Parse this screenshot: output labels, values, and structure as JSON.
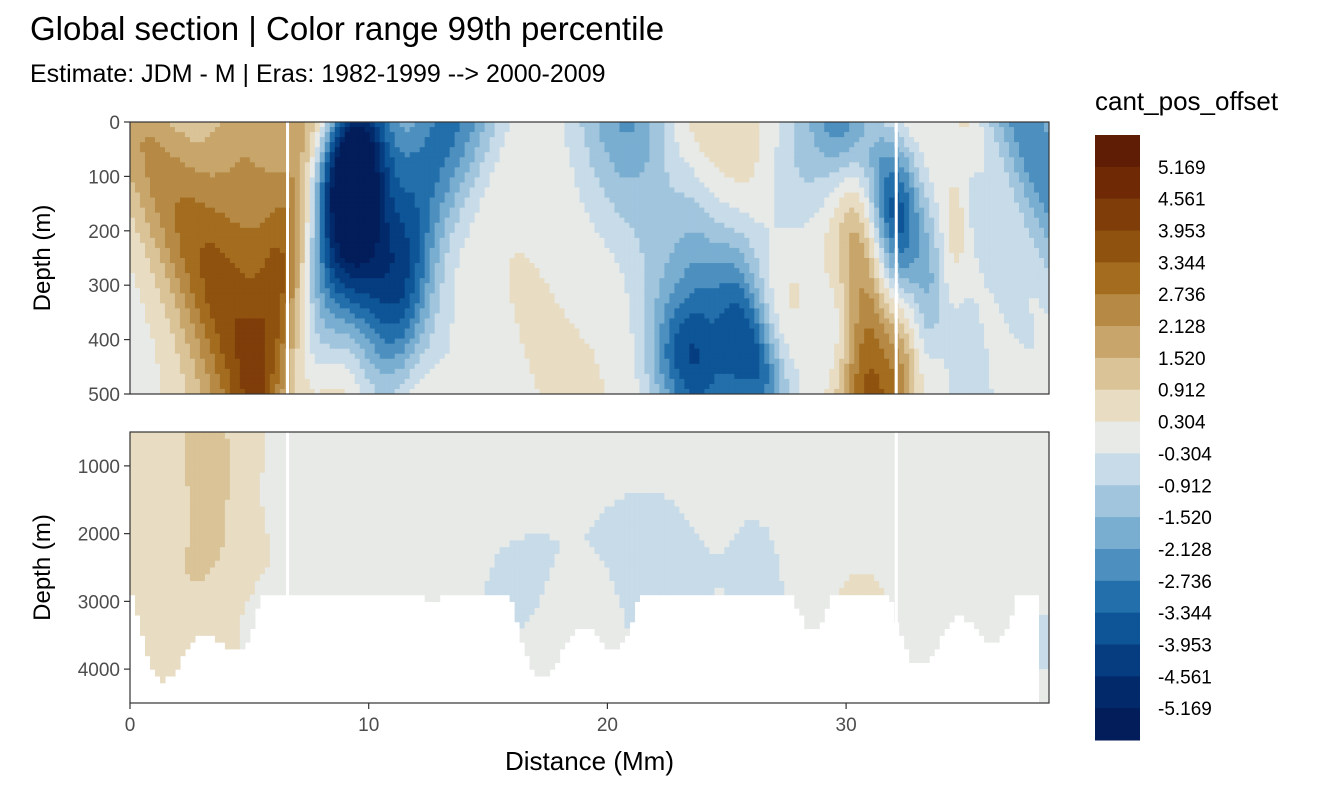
{
  "title": "Global section | Color range 99th percentile",
  "subtitle": "Estimate: JDM - M | Eras: 1982-1999 --> 2000-2009",
  "chart_data": {
    "type": "heatmap",
    "xlabel": "Distance (Mm)",
    "ylabel": "Depth (m)",
    "xlim": [
      0,
      38.5
    ],
    "x_ticks": [
      "0",
      "10",
      "20",
      "30"
    ],
    "panels": [
      {
        "name": "upper",
        "ylim": [
          0,
          500
        ],
        "y_ticks": [
          "0",
          "100",
          "200",
          "300",
          "400",
          "500"
        ]
      },
      {
        "name": "lower",
        "ylim": [
          500,
          4500
        ],
        "y_ticks": [
          "1000",
          "2000",
          "3000",
          "4000"
        ]
      }
    ],
    "legend": {
      "title": "cant_pos_offset",
      "position": "right",
      "labels": [
        "5.169",
        "4.561",
        "3.953",
        "3.344",
        "2.736",
        "2.128",
        "1.520",
        "0.912",
        "0.304",
        "-0.304",
        "-0.912",
        "-1.520",
        "-2.128",
        "-2.736",
        "-3.344",
        "-3.953",
        "-4.561",
        "-5.169"
      ],
      "colors": [
        "#5e1d04",
        "#6f2a05",
        "#7f3d0a",
        "#8f520f",
        "#a36c1e",
        "#b68a45",
        "#c8a66b",
        "#d9c397",
        "#e8dcc3",
        "#e8eae8",
        "#c7dbe8",
        "#a0c5dd",
        "#79aed1",
        "#4d90bf",
        "#236fab",
        "#0d5596",
        "#053d80",
        "#022a6b",
        "#021d5a"
      ]
    }
  }
}
